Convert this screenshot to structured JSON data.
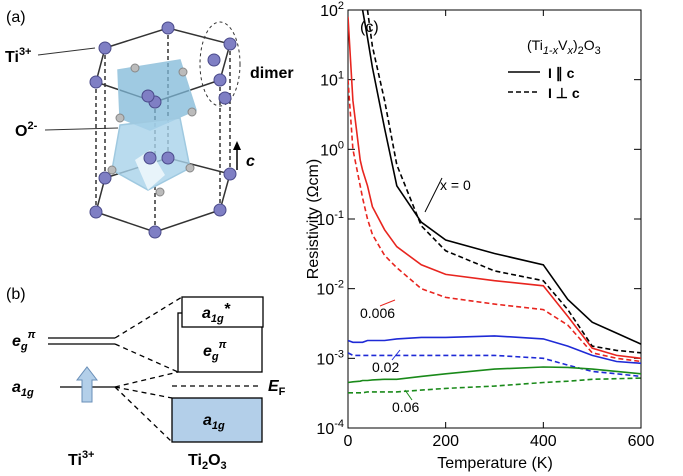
{
  "chart_data": {
    "type": "line",
    "panel_label": "(c)",
    "formula": [
      "(Ti",
      "1-x",
      "V",
      "x",
      ")",
      "2",
      "O",
      "3"
    ],
    "xlabel": "Temperature (K)",
    "ylabel": "Resistivity (Ωcm)",
    "x": [
      0,
      10,
      25,
      30,
      40,
      50,
      75,
      100,
      150,
      200,
      300,
      400,
      450,
      500,
      550,
      600
    ],
    "xlim": [
      0,
      600
    ],
    "xticks": [
      0,
      200,
      400,
      600
    ],
    "ylim": [
      0.0001,
      100
    ],
    "ylog": true,
    "yticks": [
      {
        "value": 100,
        "label": "10^2"
      },
      {
        "value": 10,
        "label": "10^1"
      },
      {
        "value": 1,
        "label": "10^0"
      },
      {
        "value": 0.1,
        "label": "10^-1"
      },
      {
        "value": 0.01,
        "label": "10^-2"
      },
      {
        "value": 0.001,
        "label": "10^-3"
      },
      {
        "value": 0.0001,
        "label": "10^-4"
      }
    ],
    "legend": [
      {
        "label": "I ∥ c",
        "dash": false
      },
      {
        "label": "I ⊥ c",
        "dash": true
      }
    ],
    "series": [
      {
        "color": "#000000",
        "dash": false,
        "values": [
          null,
          null,
          null,
          100,
          40,
          15,
          2,
          0.3,
          0.09,
          0.05,
          0.032,
          0.022,
          0.007,
          0.0033,
          0.0023,
          0.0016
        ]
      },
      {
        "color": "#000000",
        "dash": true,
        "values": [
          null,
          null,
          null,
          null,
          100,
          30,
          5,
          0.6,
          0.08,
          0.035,
          0.018,
          0.013,
          0.005,
          0.0015,
          0.0013,
          0.0012
        ]
      },
      {
        "color": "#e8251f",
        "dash": false,
        "values": [
          80,
          5,
          0.7,
          0.5,
          0.3,
          0.15,
          0.07,
          0.04,
          0.022,
          0.016,
          0.013,
          0.011,
          0.004,
          0.0014,
          0.0011,
          0.001
        ]
      },
      {
        "color": "#e8251f",
        "dash": true,
        "values": [
          10,
          1,
          0.3,
          0.2,
          0.1,
          0.06,
          0.03,
          0.02,
          0.01,
          0.0075,
          0.006,
          0.005,
          0.003,
          0.0012,
          0.001,
          0.0009
        ]
      },
      {
        "color": "#1f2ad6",
        "dash": false,
        "values": [
          0.0018,
          0.0017,
          0.0017,
          0.0017,
          0.0018,
          0.0018,
          0.0018,
          0.0019,
          0.002,
          0.002,
          0.0021,
          0.0019,
          0.0015,
          0.0011,
          0.0009,
          0.00085
        ]
      },
      {
        "color": "#1f2ad6",
        "dash": true,
        "values": [
          0.0012,
          0.0011,
          0.0011,
          0.0011,
          0.0011,
          0.0011,
          0.0011,
          0.0011,
          0.0011,
          0.0011,
          0.0011,
          0.001,
          0.0008,
          0.00065,
          0.0006,
          0.00055
        ]
      },
      {
        "color": "#1a8a1a",
        "dash": false,
        "values": [
          0.00045,
          0.00046,
          0.00047,
          0.00048,
          0.00048,
          0.00049,
          0.0005,
          0.0005,
          0.00055,
          0.0006,
          0.0007,
          0.00075,
          0.00074,
          0.0007,
          0.00065,
          0.0006
        ]
      },
      {
        "color": "#1a8a1a",
        "dash": true,
        "values": [
          0.00032,
          0.00032,
          0.00032,
          0.00032,
          0.00033,
          0.00033,
          0.00033,
          0.00033,
          0.00035,
          0.00037,
          0.0004,
          0.00045,
          0.00047,
          0.0005,
          0.00051,
          0.00052
        ]
      }
    ],
    "annotations": [
      {
        "text": "x = 0",
        "color": "#000000"
      },
      {
        "text": "0.006",
        "color": "#e8251f"
      },
      {
        "text": "0.02",
        "color": "#1f2ad6"
      },
      {
        "text": "0.06",
        "color": "#1a8a1a"
      }
    ]
  },
  "panel_a": {
    "label": "(a)",
    "ti": [
      "Ti",
      "3+"
    ],
    "dimer": "dimer",
    "o": [
      "O",
      "2-"
    ],
    "axis": "c"
  },
  "panel_b": {
    "label": "(b)",
    "eg_left": [
      "e",
      "g",
      "π"
    ],
    "a1g_left": [
      "a",
      "1g"
    ],
    "a1g_star": [
      "a",
      "1g",
      "*"
    ],
    "eg_right": [
      "e",
      "g",
      "π"
    ],
    "a1g_right": [
      "a",
      "1g"
    ],
    "ef": [
      "E",
      "F"
    ],
    "ti": [
      "Ti",
      "3+"
    ],
    "ti2o3": [
      "Ti",
      "2",
      "O",
      "3"
    ]
  }
}
